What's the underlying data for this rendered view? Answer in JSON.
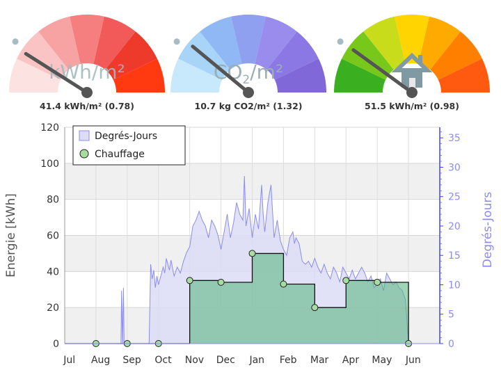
{
  "gauges": [
    {
      "id": "gauge-energy",
      "label": "kWh/m²",
      "value_text": "41.4 kWh/m² (0.78)",
      "needle_fraction": 0.18,
      "segment_colors": [
        "#fde2e2",
        "#fbc4c4",
        "#f8a3a3",
        "#f57f7f",
        "#f25a5a",
        "#ee3a2a",
        "#ff3a10"
      ]
    },
    {
      "id": "gauge-co2",
      "label_main": "CO",
      "label_sub": "2",
      "label_tail": "/m²",
      "value_text": "10.7 kg CO2/m² (1.32)",
      "needle_fraction": 0.22,
      "segment_colors": [
        "#c8e8fb",
        "#a8d4f8",
        "#90b8f4",
        "#8fa0f0",
        "#9a8cec",
        "#8c78e4",
        "#8068d8"
      ]
    },
    {
      "id": "gauge-heating",
      "icon": "house-icon",
      "value_text": "51.5 kWh/m² (0.98)",
      "needle_fraction": 0.2,
      "segment_colors": [
        "#3ab020",
        "#78c81c",
        "#c8dc1c",
        "#ffd400",
        "#ffaa00",
        "#ff7f00",
        "#ff5a10"
      ]
    }
  ],
  "chart_data": {
    "type": "area",
    "x_categories": [
      "Jul",
      "Aug",
      "Sep",
      "Oct",
      "Nov",
      "Dec",
      "Jan",
      "Feb",
      "Mar",
      "Apr",
      "May",
      "Jun"
    ],
    "ylabel": "Energie [kWh]",
    "ylabel2": "Degrés-Jours",
    "ylim": [
      0,
      120
    ],
    "yticks": [
      0,
      20,
      40,
      60,
      80,
      100,
      120
    ],
    "ylim2": [
      0,
      36.8
    ],
    "yticks2": [
      0,
      5,
      10,
      15,
      20,
      25,
      30,
      35
    ],
    "legend_position": "top-left",
    "legend": [
      "Degrés-Jours",
      "Chauffage"
    ],
    "series": [
      {
        "name": "Chauffage",
        "type": "step",
        "color": "#6fc08f",
        "x": [
          0,
          1,
          2,
          3,
          4,
          5,
          6,
          7,
          8,
          9,
          10,
          11
        ],
        "values": [
          0,
          0,
          0,
          0,
          35,
          34,
          50,
          33,
          20,
          35,
          34,
          0
        ]
      },
      {
        "name": "Degrés-Jours",
        "type": "area",
        "color": "#8c8cf0",
        "x": [
          0.9,
          1.0,
          1.8,
          1.82,
          1.85,
          1.88,
          1.9,
          2.7,
          2.75,
          2.8,
          2.85,
          2.9,
          2.95,
          3.0,
          3.05,
          3.1,
          3.15,
          3.2,
          3.25,
          3.3,
          3.35,
          3.4,
          3.5,
          3.6,
          3.7,
          3.8,
          3.9,
          4.0,
          4.1,
          4.2,
          4.3,
          4.4,
          4.5,
          4.6,
          4.7,
          4.8,
          4.9,
          5.0,
          5.1,
          5.2,
          5.3,
          5.4,
          5.5,
          5.6,
          5.7,
          5.75,
          5.8,
          5.9,
          6.0,
          6.1,
          6.2,
          6.3,
          6.35,
          6.4,
          6.5,
          6.6,
          6.7,
          6.8,
          6.9,
          7.0,
          7.1,
          7.2,
          7.3,
          7.35,
          7.4,
          7.5,
          7.6,
          7.7,
          7.8,
          7.9,
          8.0,
          8.1,
          8.2,
          8.3,
          8.4,
          8.5,
          8.6,
          8.7,
          8.8,
          8.9,
          9.0,
          9.1,
          9.2,
          9.3,
          9.4,
          9.5,
          9.6,
          9.7,
          9.8,
          9.9,
          10.0,
          10.1,
          10.2,
          10.3,
          10.4,
          10.5,
          10.6,
          10.7,
          10.8,
          10.9,
          11.0
        ],
        "values": [
          0,
          0,
          0,
          9,
          0,
          9.5,
          0,
          0,
          13.5,
          11,
          12.5,
          9.5,
          11.5,
          10,
          11,
          12,
          13,
          12,
          14.5,
          13.5,
          12.5,
          14.2,
          11.5,
          13,
          12,
          14,
          15.5,
          16.5,
          20,
          21,
          22.5,
          21,
          20,
          18,
          21,
          20,
          18.5,
          16,
          19,
          22,
          18,
          20.5,
          24,
          22,
          21,
          28.5,
          20,
          23,
          18,
          22,
          19.5,
          27,
          22,
          19,
          24,
          27,
          18,
          21,
          17.5,
          16,
          15,
          18,
          19,
          17,
          18,
          17,
          14,
          13.5,
          14,
          13,
          14.5,
          13,
          12,
          13.5,
          12,
          11,
          13,
          12,
          10.5,
          13,
          12,
          11,
          12.5,
          11,
          12,
          13,
          12,
          10.5,
          11.5,
          9.5,
          10,
          11,
          9,
          12,
          11,
          10,
          10.5,
          9.5,
          9,
          7.5,
          0
        ]
      }
    ],
    "markers": [
      {
        "x": 1,
        "y": 0
      },
      {
        "x": 2,
        "y": 0
      },
      {
        "x": 3,
        "y": 0
      },
      {
        "x": 4,
        "y": 35
      },
      {
        "x": 5,
        "y": 34
      },
      {
        "x": 6,
        "y": 50
      },
      {
        "x": 7,
        "y": 33
      },
      {
        "x": 8,
        "y": 20
      },
      {
        "x": 9,
        "y": 35
      },
      {
        "x": 10,
        "y": 34
      },
      {
        "x": 11,
        "y": 0
      }
    ]
  }
}
